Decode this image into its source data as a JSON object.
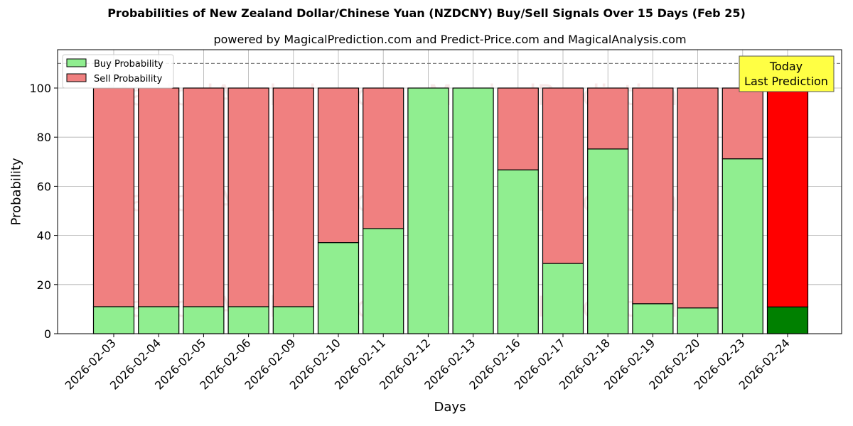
{
  "title": "Probabilities of New Zealand Dollar/Chinese Yuan (NZDCNY) Buy/Sell Signals Over 15 Days (Feb 25)",
  "subtitle": "powered by MagicalPrediction.com and Predict-Price.com and MagicalAnalysis.com",
  "watermarks": [
    "MagicalAnalysis.com",
    "MagicalPrediction.com"
  ],
  "annotation": {
    "line1": "Today",
    "line2": "Last Prediction"
  },
  "colors": {
    "buy": "#90ee90",
    "sell": "#f08080",
    "today_buy": "#008000",
    "today_sell": "#ff0000",
    "annotation_bg": "#ffff44"
  },
  "chart_data": {
    "type": "bar",
    "stacked": true,
    "title": "Probabilities of New Zealand Dollar/Chinese Yuan (NZDCNY) Buy/Sell Signals Over 15 Days (Feb 25)",
    "subtitle": "powered by MagicalPrediction.com and Predict-Price.com and MagicalAnalysis.com",
    "xlabel": "Days",
    "ylabel": "Probability",
    "ylim": [
      0,
      115
    ],
    "yticks": [
      0,
      20,
      40,
      60,
      80,
      100
    ],
    "grid": true,
    "legend_position": "upper left",
    "reference_line": {
      "y": 110,
      "style": "dashed",
      "color": "#808080"
    },
    "categories": [
      "2026-02-03",
      "2026-02-04",
      "2026-02-05",
      "2026-02-06",
      "2026-02-09",
      "2026-02-10",
      "2026-02-11",
      "2026-02-12",
      "2026-02-13",
      "2026-02-16",
      "2026-02-17",
      "2026-02-18",
      "2026-02-19",
      "2026-02-20",
      "2026-02-23",
      "2026-02-24"
    ],
    "series": [
      {
        "name": "Buy Probability",
        "values": [
          11,
          11,
          11,
          11,
          11,
          37.1,
          42.8,
          100,
          100,
          66.7,
          28.6,
          75.2,
          12.2,
          10.5,
          71.2,
          10.9
        ]
      },
      {
        "name": "Sell Probability",
        "values": [
          89,
          89,
          89,
          89,
          89,
          62.9,
          57.2,
          0,
          0,
          33.3,
          71.4,
          24.8,
          87.8,
          89.5,
          28.8,
          89.1
        ]
      }
    ],
    "highlight": {
      "category": "2026-02-24",
      "label": "Today Last Prediction"
    }
  }
}
